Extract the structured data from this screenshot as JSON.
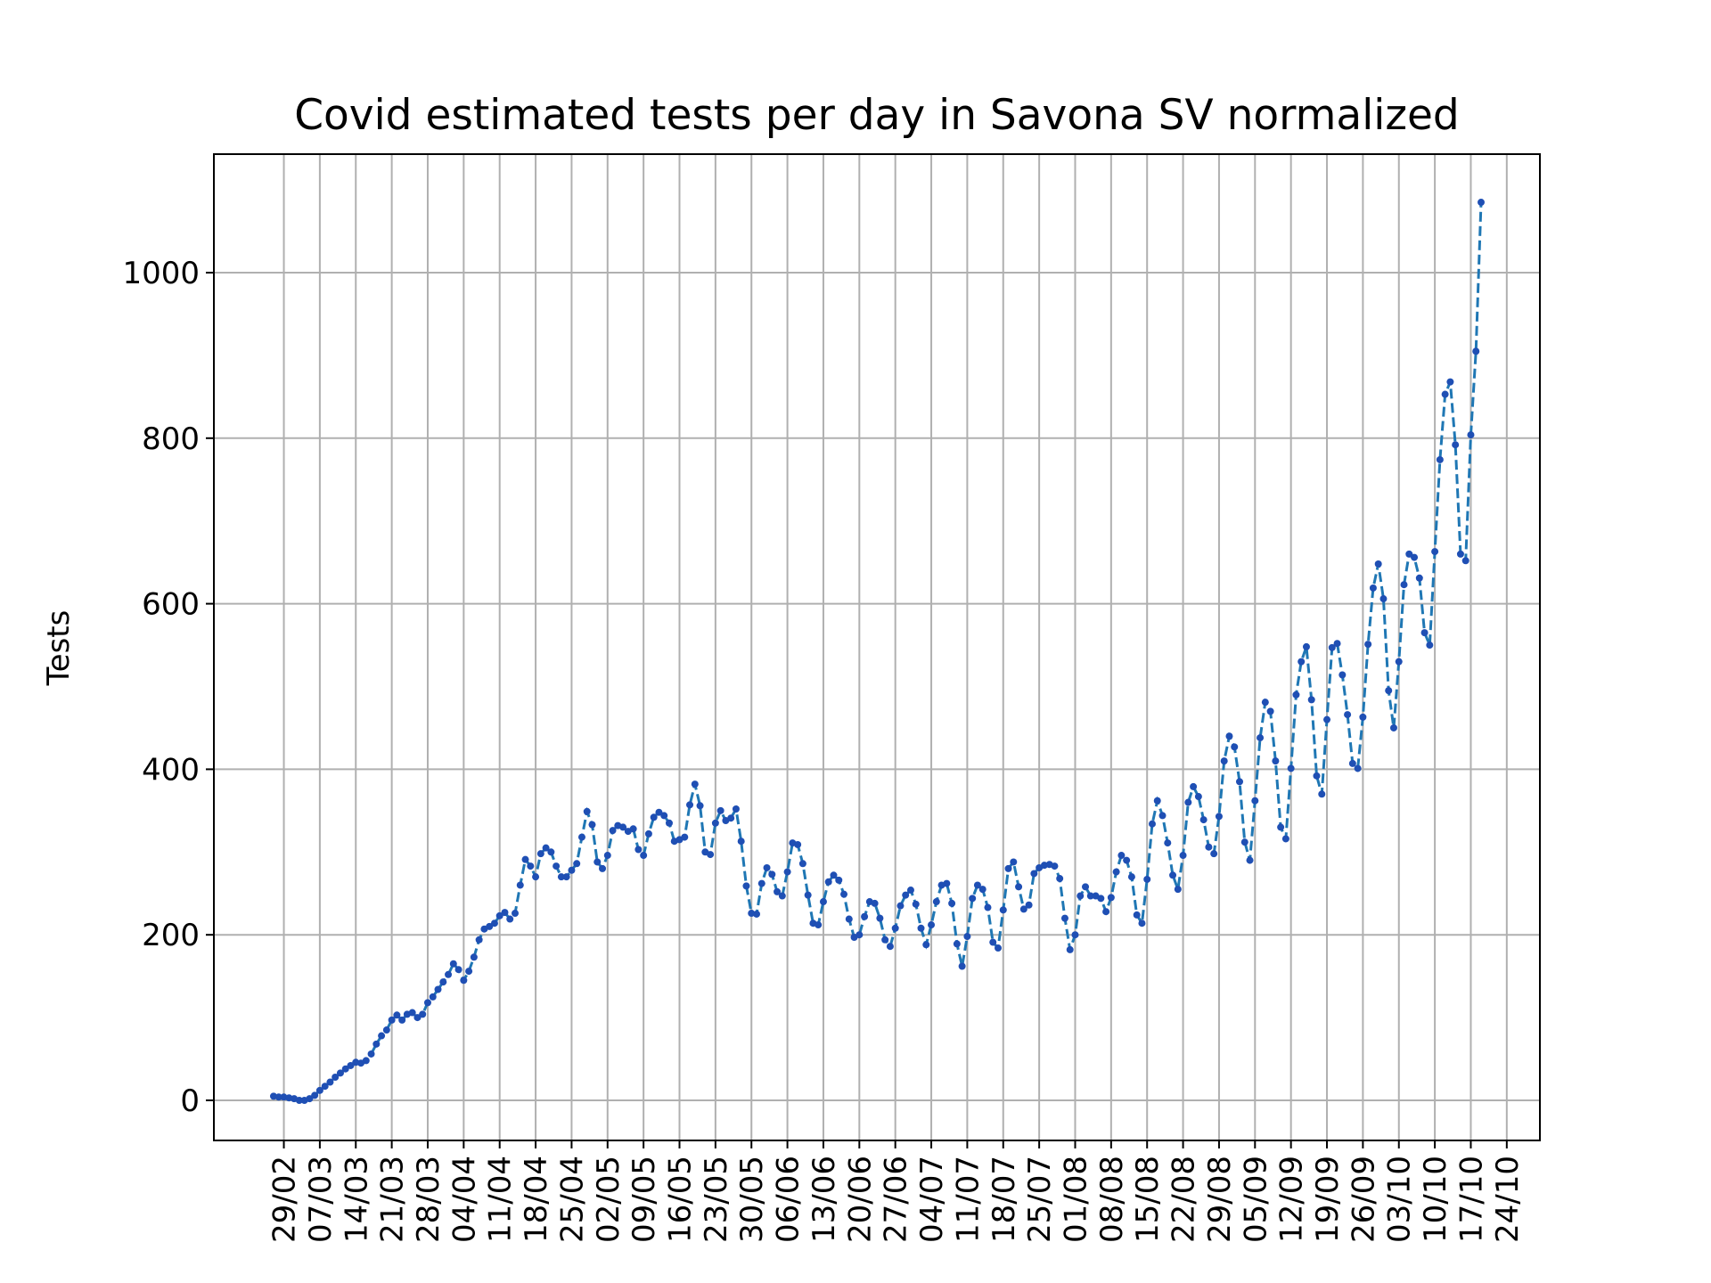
{
  "chart_data": {
    "type": "line",
    "title": "Covid estimated tests per day in Savona SV normalized",
    "xlabel": "",
    "ylabel": "Tests",
    "start_date": "2020-02-27",
    "x_ticks": [
      "29/02",
      "07/03",
      "14/03",
      "21/03",
      "28/03",
      "04/04",
      "11/04",
      "18/04",
      "25/04",
      "02/05",
      "09/05",
      "16/05",
      "23/05",
      "30/05",
      "06/06",
      "13/06",
      "20/06",
      "27/06",
      "04/07",
      "11/07",
      "18/07",
      "25/07",
      "01/08",
      "08/08",
      "15/08",
      "22/08",
      "29/08",
      "05/09",
      "12/09",
      "19/09",
      "26/09",
      "03/10",
      "10/10",
      "17/10",
      "24/10"
    ],
    "y_ticks": [
      0,
      200,
      400,
      600,
      800,
      1000
    ],
    "ylim": [
      -50,
      1140
    ],
    "grid": true,
    "series": [
      {
        "name": "",
        "color": "#1f77b4",
        "marker_color": "#1f4fb4",
        "values": [
          5,
          4,
          4,
          3,
          2,
          0,
          0,
          2,
          6,
          12,
          17,
          22,
          28,
          33,
          38,
          42,
          46,
          45,
          48,
          56,
          68,
          78,
          85,
          97,
          103,
          97,
          104,
          106,
          100,
          104,
          118,
          125,
          134,
          143,
          152,
          165,
          158,
          145,
          156,
          173,
          194,
          207,
          210,
          214,
          223,
          227,
          219,
          226,
          260,
          291,
          283,
          270,
          298,
          305,
          300,
          283,
          270,
          270,
          278,
          286,
          318,
          349,
          333,
          288,
          280,
          296,
          326,
          332,
          330,
          325,
          328,
          303,
          296,
          322,
          342,
          348,
          344,
          335,
          313,
          315,
          318,
          357,
          382,
          356,
          300,
          297,
          335,
          350,
          338,
          341,
          352,
          313,
          259,
          226,
          225,
          262,
          281,
          273,
          252,
          247,
          276,
          311,
          309,
          286,
          248,
          214,
          212,
          240,
          264,
          272,
          266,
          249,
          219,
          197,
          200,
          222,
          240,
          238,
          220,
          194,
          186,
          208,
          235,
          248,
          254,
          237,
          208,
          188,
          212,
          240,
          260,
          262,
          238,
          189,
          162,
          198,
          244,
          260,
          255,
          233,
          191,
          184,
          230,
          280,
          288,
          258,
          231,
          236,
          274,
          281,
          284,
          285,
          283,
          268,
          220,
          182,
          200,
          247,
          258,
          247,
          247,
          244,
          228,
          245,
          276,
          296,
          290,
          270,
          224,
          214,
          267,
          334,
          362,
          344,
          311,
          272,
          255,
          296,
          360,
          379,
          367,
          339,
          306,
          298,
          343,
          410,
          440,
          427,
          385,
          312,
          290,
          362,
          438,
          481,
          470,
          410,
          330,
          316,
          401,
          490,
          530,
          548,
          484,
          392,
          370,
          460,
          547,
          552,
          514,
          466,
          407,
          401,
          463,
          551,
          619,
          648,
          606,
          495,
          450,
          530,
          623,
          660,
          656,
          631,
          565,
          550,
          663,
          774,
          853,
          868,
          792,
          660,
          652,
          804,
          905,
          1085
        ]
      }
    ]
  }
}
